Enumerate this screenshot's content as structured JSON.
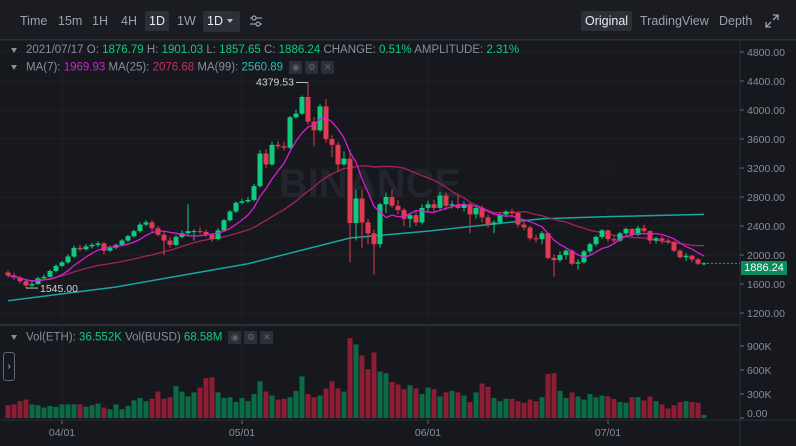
{
  "toolbar": {
    "intervals": [
      "Time",
      "15m",
      "1H",
      "4H",
      "1D",
      "1W"
    ],
    "active_interval": "1D",
    "dropdown_value": "1D",
    "views": [
      "Original",
      "TradingView",
      "Depth"
    ],
    "active_view": "Original",
    "icons": {
      "settings": "sliders-icon",
      "expand": "expand-icon",
      "dropdown": "caret-down-icon"
    }
  },
  "ohlc_info": {
    "date": "2021/07/17",
    "o_label": "O:",
    "o": "1876.79",
    "h_label": "H:",
    "h": "1901.03",
    "l_label": "L:",
    "l": "1857.65",
    "c_label": "C:",
    "c": "1886.24",
    "change_label": "CHANGE:",
    "change": "0.51%",
    "amplitude_label": "AMPLITUDE:",
    "amplitude": "2.31%"
  },
  "ma_info": {
    "ma7_label": "MA(7):",
    "ma7": "1969.93",
    "ma25_label": "MA(25):",
    "ma25": "2076.68",
    "ma99_label": "MA(99):",
    "ma99": "2560.89"
  },
  "vol_info": {
    "eth_label": "Vol(ETH):",
    "eth": "36.552K",
    "busd_label": "Vol(BUSD)",
    "busd": "68.58M"
  },
  "watermark": "BINANCE",
  "colors": {
    "background": "#17181e",
    "up": "#0ecb81",
    "down": "#e23a52",
    "vol_up": "#0b6b47",
    "vol_down": "#8c1d33",
    "ma7": "#d91dd9",
    "ma25": "#a0255a",
    "ma99": "#19a5a0"
  },
  "chart_data": {
    "type": "candlestick",
    "columns": [
      "date",
      "open",
      "high",
      "low",
      "close",
      "volume_k"
    ],
    "candles": [
      [
        "03/23",
        1760,
        1790,
        1690,
        1720,
        160
      ],
      [
        "03/24",
        1720,
        1760,
        1660,
        1690,
        170
      ],
      [
        "03/25",
        1690,
        1710,
        1610,
        1640,
        210
      ],
      [
        "03/26",
        1640,
        1670,
        1545,
        1580,
        230
      ],
      [
        "03/27",
        1580,
        1640,
        1560,
        1600,
        170
      ],
      [
        "03/28",
        1600,
        1700,
        1590,
        1680,
        160
      ],
      [
        "03/29",
        1680,
        1730,
        1660,
        1700,
        130
      ],
      [
        "03/30",
        1700,
        1800,
        1690,
        1780,
        150
      ],
      [
        "03/31",
        1780,
        1870,
        1760,
        1850,
        140
      ],
      [
        "04/01",
        1850,
        1920,
        1830,
        1900,
        170
      ],
      [
        "04/02",
        1900,
        2010,
        1880,
        1980,
        170
      ],
      [
        "04/03",
        1980,
        2130,
        1960,
        2100,
        170
      ],
      [
        "04/04",
        2100,
        2140,
        2050,
        2080,
        170
      ],
      [
        "04/05",
        2080,
        2150,
        2060,
        2120,
        140
      ],
      [
        "04/06",
        2120,
        2170,
        2090,
        2140,
        160
      ],
      [
        "04/07",
        2140,
        2190,
        2110,
        2160,
        180
      ],
      [
        "04/08",
        2160,
        2180,
        2010,
        2060,
        130
      ],
      [
        "04/09",
        2060,
        2130,
        2040,
        2100,
        110
      ],
      [
        "04/10",
        2100,
        2160,
        2080,
        2140,
        170
      ],
      [
        "04/11",
        2140,
        2220,
        2120,
        2200,
        110
      ],
      [
        "04/12",
        2200,
        2280,
        2180,
        2260,
        150
      ],
      [
        "04/13",
        2260,
        2350,
        2240,
        2330,
        220
      ],
      [
        "04/14",
        2330,
        2450,
        2310,
        2420,
        250
      ],
      [
        "04/15",
        2420,
        2480,
        2400,
        2450,
        210
      ],
      [
        "04/16",
        2450,
        2480,
        2300,
        2370,
        240
      ],
      [
        "04/17",
        2370,
        2400,
        2260,
        2280,
        330
      ],
      [
        "04/18",
        2280,
        2330,
        2000,
        2200,
        240
      ],
      [
        "04/19",
        2200,
        2250,
        2100,
        2140,
        260
      ],
      [
        "04/20",
        2140,
        2280,
        2120,
        2250,
        400
      ],
      [
        "04/21",
        2250,
        2340,
        2230,
        2300,
        330
      ],
      [
        "04/22",
        2300,
        2700,
        2280,
        2330,
        270
      ],
      [
        "04/23",
        2330,
        2360,
        2200,
        2330,
        320
      ],
      [
        "04/24",
        2330,
        2380,
        2290,
        2320,
        380
      ],
      [
        "04/25",
        2320,
        2350,
        2250,
        2280,
        500
      ],
      [
        "04/26",
        2280,
        2300,
        2180,
        2220,
        510
      ],
      [
        "04/27",
        2220,
        2370,
        2200,
        2340,
        320
      ],
      [
        "04/28",
        2340,
        2500,
        2320,
        2480,
        250
      ],
      [
        "04/29",
        2480,
        2620,
        2460,
        2600,
        260
      ],
      [
        "04/30",
        2600,
        2740,
        2580,
        2720,
        200
      ],
      [
        "05/01",
        2720,
        2780,
        2700,
        2740,
        250
      ],
      [
        "05/02",
        2740,
        2800,
        2720,
        2760,
        210
      ],
      [
        "05/03",
        2760,
        2980,
        2740,
        2950,
        300
      ],
      [
        "05/04",
        2950,
        3450,
        2930,
        3400,
        460
      ],
      [
        "05/05",
        3400,
        3460,
        3200,
        3250,
        330
      ],
      [
        "05/06",
        3250,
        3560,
        3230,
        3520,
        280
      ],
      [
        "05/07",
        3520,
        3570,
        3460,
        3500,
        230
      ],
      [
        "05/08",
        3500,
        3560,
        3440,
        3480,
        240
      ],
      [
        "05/09",
        3480,
        3920,
        3460,
        3900,
        260
      ],
      [
        "05/10",
        3900,
        4000,
        3880,
        3950,
        340
      ],
      [
        "05/11",
        3950,
        4200,
        3930,
        4180,
        520
      ],
      [
        "05/12",
        4180,
        4379.53,
        3800,
        3840,
        300
      ],
      [
        "05/13",
        3840,
        3900,
        3500,
        3720,
        260
      ],
      [
        "05/14",
        3720,
        4080,
        3700,
        4050,
        280
      ],
      [
        "05/15",
        4050,
        4150,
        3550,
        3600,
        370
      ],
      [
        "05/16",
        3600,
        3650,
        3350,
        3520,
        460
      ],
      [
        "05/17",
        3520,
        3560,
        3150,
        3250,
        370
      ],
      [
        "05/18",
        3250,
        3430,
        3230,
        3330,
        330
      ],
      [
        "05/19",
        3330,
        3450,
        1900,
        2440,
        1000
      ],
      [
        "05/20",
        2440,
        2900,
        2200,
        2780,
        920
      ],
      [
        "05/21",
        2780,
        2900,
        2100,
        2450,
        780
      ],
      [
        "05/22",
        2450,
        2500,
        2150,
        2300,
        610
      ],
      [
        "05/23",
        2300,
        2350,
        1730,
        2150,
        820
      ],
      [
        "05/24",
        2150,
        2720,
        2100,
        2700,
        580
      ],
      [
        "05/25",
        2700,
        2860,
        2580,
        2800,
        560
      ],
      [
        "05/26",
        2800,
        2900,
        2650,
        2680,
        450
      ],
      [
        "05/27",
        2680,
        2760,
        2560,
        2620,
        420
      ],
      [
        "05/28",
        2620,
        2650,
        2400,
        2500,
        360
      ],
      [
        "05/29",
        2500,
        2580,
        2380,
        2550,
        410
      ],
      [
        "05/30",
        2550,
        2600,
        2400,
        2450,
        370
      ],
      [
        "05/31",
        2450,
        2700,
        2420,
        2650,
        300
      ],
      [
        "06/01",
        2650,
        2750,
        2600,
        2700,
        380
      ],
      [
        "06/02",
        2700,
        2760,
        2600,
        2650,
        360
      ],
      [
        "06/03",
        2650,
        2870,
        2630,
        2820,
        270
      ],
      [
        "06/04",
        2820,
        2860,
        2620,
        2680,
        320
      ],
      [
        "06/05",
        2680,
        2750,
        2640,
        2700,
        340
      ],
      [
        "06/06",
        2700,
        2830,
        2630,
        2650,
        320
      ],
      [
        "06/07",
        2650,
        2740,
        2600,
        2700,
        280
      ],
      [
        "06/08",
        2700,
        2720,
        2300,
        2560,
        200
      ],
      [
        "06/09",
        2560,
        2680,
        2500,
        2650,
        320
      ],
      [
        "06/10",
        2650,
        2680,
        2450,
        2520,
        430
      ],
      [
        "06/11",
        2520,
        2560,
        2380,
        2420,
        390
      ],
      [
        "06/12",
        2420,
        2480,
        2300,
        2450,
        250
      ],
      [
        "06/13",
        2450,
        2580,
        2420,
        2560,
        210
      ],
      [
        "06/14",
        2560,
        2620,
        2520,
        2600,
        240
      ],
      [
        "06/15",
        2600,
        2640,
        2540,
        2580,
        240
      ],
      [
        "06/16",
        2580,
        2600,
        2380,
        2420,
        210
      ],
      [
        "06/17",
        2420,
        2460,
        2340,
        2380,
        190
      ],
      [
        "06/18",
        2380,
        2400,
        2200,
        2230,
        230
      ],
      [
        "06/19",
        2230,
        2280,
        2170,
        2220,
        210
      ],
      [
        "06/20",
        2220,
        2330,
        2150,
        2300,
        260
      ],
      [
        "06/21",
        2300,
        2310,
        1940,
        1960,
        550
      ],
      [
        "06/22",
        1960,
        2010,
        1700,
        1930,
        560
      ],
      [
        "06/23",
        1930,
        2050,
        1900,
        2000,
        340
      ],
      [
        "06/24",
        2000,
        2080,
        1940,
        2060,
        250
      ],
      [
        "06/25",
        2060,
        2080,
        1860,
        1880,
        320
      ],
      [
        "06/26",
        1880,
        1940,
        1800,
        1900,
        270
      ],
      [
        "06/27",
        1900,
        2070,
        1880,
        2050,
        230
      ],
      [
        "06/28",
        2050,
        2170,
        2020,
        2150,
        300
      ],
      [
        "06/29",
        2150,
        2270,
        2120,
        2250,
        260
      ],
      [
        "06/30",
        2250,
        2360,
        2220,
        2340,
        280
      ],
      [
        "07/01",
        2340,
        2350,
        2180,
        2220,
        270
      ],
      [
        "07/02",
        2220,
        2260,
        2150,
        2200,
        240
      ],
      [
        "07/03",
        2200,
        2320,
        2180,
        2300,
        200
      ],
      [
        "07/04",
        2300,
        2380,
        2270,
        2360,
        190
      ],
      [
        "07/05",
        2360,
        2370,
        2250,
        2280,
        260
      ],
      [
        "07/06",
        2280,
        2400,
        2260,
        2370,
        260
      ],
      [
        "07/07",
        2370,
        2420,
        2310,
        2330,
        220
      ],
      [
        "07/08",
        2330,
        2340,
        2150,
        2200,
        270
      ],
      [
        "07/09",
        2200,
        2250,
        2160,
        2230,
        210
      ],
      [
        "07/10",
        2230,
        2260,
        2150,
        2200,
        170
      ],
      [
        "07/11",
        2200,
        2230,
        2150,
        2180,
        120
      ],
      [
        "07/12",
        2180,
        2200,
        2040,
        2060,
        160
      ],
      [
        "07/13",
        2060,
        2080,
        1950,
        1970,
        200
      ],
      [
        "07/14",
        1970,
        2030,
        1920,
        1990,
        210
      ],
      [
        "07/15",
        1990,
        2000,
        1900,
        1940,
        200
      ],
      [
        "07/16",
        1940,
        1960,
        1860,
        1880,
        190
      ],
      [
        "07/17",
        1876.79,
        1901.03,
        1857.65,
        1886.24,
        36.552
      ]
    ],
    "ma99": [
      [
        "03/23",
        1370
      ],
      [
        "04/10",
        1560
      ],
      [
        "05/02",
        1880
      ],
      [
        "05/19",
        2235
      ],
      [
        "06/01",
        2330
      ],
      [
        "06/20",
        2500
      ],
      [
        "07/01",
        2530
      ],
      [
        "07/17",
        2560.89
      ]
    ],
    "price_ticks": [
      "4800.00",
      "4400.00",
      "4000.00",
      "3600.00",
      "3200.00",
      "2800.00",
      "2400.00",
      "2000.00",
      "1600.00",
      "1200.00"
    ],
    "price_range": [
      1200,
      4800
    ],
    "volume_ticks": [
      "900K",
      "600K",
      "300K",
      "0.00"
    ],
    "volume_range": [
      0,
      900
    ],
    "date_ticks": [
      "04/01",
      "05/01",
      "06/01",
      "07/01"
    ],
    "annotations": {
      "high": "4379.53",
      "low": "1545.00"
    },
    "last_price": "1886.24",
    "grid": true
  }
}
